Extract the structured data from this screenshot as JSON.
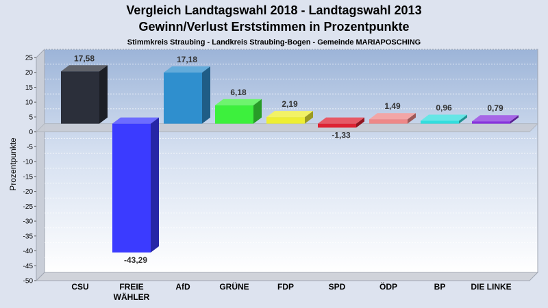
{
  "chart_data": {
    "type": "bar",
    "title": "Vergleich Landtagswahl 2018 - Landtagswahl 2013",
    "title2": "Gewinn/Verlust Erststimmen in Prozentpunkte",
    "subtitle": "Stimmkreis Straubing - Landkreis Straubing-Bogen - Gemeinde MARIAPOSCHING",
    "ylabel": "Prozentpunkte",
    "xlabel": "",
    "ylim": [
      -50,
      25
    ],
    "yticks": [
      25,
      20,
      15,
      10,
      5,
      0,
      -5,
      -10,
      -15,
      -20,
      -25,
      -30,
      -35,
      -40,
      -45,
      -50
    ],
    "grid": true,
    "categories": [
      [
        "CSU"
      ],
      [
        "FREIE",
        "WÄHLER"
      ],
      [
        "AfD"
      ],
      [
        "GRÜNE"
      ],
      [
        "FDP"
      ],
      [
        "SPD"
      ],
      [
        "ÖDP"
      ],
      [
        "BP"
      ],
      [
        "DIE LINKE"
      ]
    ],
    "values": [
      17.58,
      -43.29,
      17.18,
      6.18,
      2.19,
      -1.33,
      1.49,
      0.96,
      0.79
    ],
    "value_labels": [
      "17,58",
      "-43,29",
      "17,18",
      "6,18",
      "2,19",
      "-1,33",
      "1,49",
      "0,96",
      "0,79"
    ],
    "colors": [
      "#2b2f3a",
      "#3b3bff",
      "#2f8fce",
      "#3df03d",
      "#eeee33",
      "#dd2233",
      "#ee8888",
      "#33dddd",
      "#8833dd"
    ]
  }
}
